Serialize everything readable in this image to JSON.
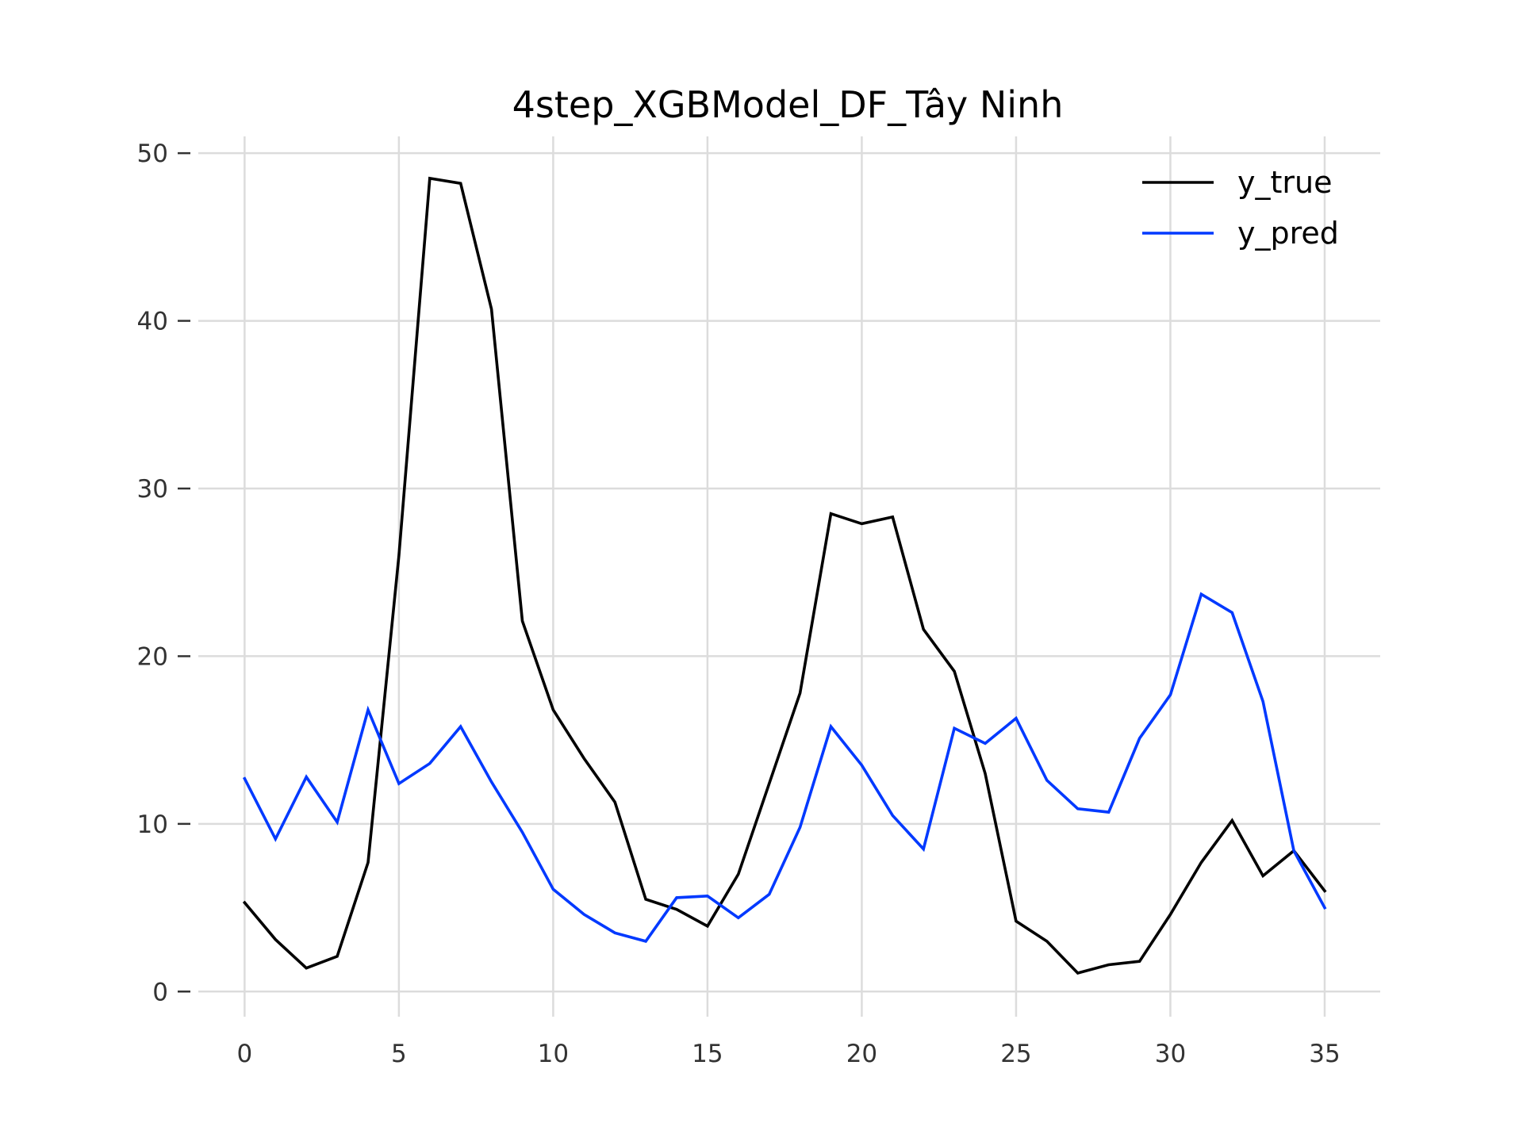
{
  "chart_data": {
    "type": "line",
    "title": "4step_XGBModel_DF_Tây Ninh",
    "xlabel": "",
    "ylabel": "",
    "xlim": [
      -1.5,
      36.8
    ],
    "ylim": [
      -1.5,
      51
    ],
    "x_ticks": [
      0,
      5,
      10,
      15,
      20,
      25,
      30,
      35
    ],
    "y_ticks": [
      0,
      10,
      20,
      30,
      40,
      50
    ],
    "grid": true,
    "legend_position": "top-right",
    "x": [
      0,
      1,
      2,
      3,
      4,
      5,
      6,
      7,
      8,
      9,
      10,
      11,
      12,
      13,
      14,
      15,
      16,
      17,
      18,
      19,
      20,
      21,
      22,
      23,
      24,
      25,
      26,
      27,
      28,
      29,
      30,
      31,
      32,
      33,
      34,
      35
    ],
    "series": [
      {
        "name": "y_true",
        "color": "#000000",
        "values": [
          5.3,
          3.1,
          1.4,
          2.1,
          7.7,
          26.0,
          48.5,
          48.2,
          40.7,
          22.1,
          16.8,
          13.9,
          11.3,
          5.5,
          4.9,
          3.9,
          7.0,
          12.4,
          17.8,
          28.5,
          27.9,
          28.3,
          21.6,
          19.1,
          13.0,
          4.2,
          3.0,
          1.1,
          1.6,
          1.8,
          4.6,
          7.7,
          10.2,
          6.9,
          8.4,
          6.0
        ]
      },
      {
        "name": "y_pred",
        "color": "#0039ff",
        "values": [
          12.7,
          9.1,
          12.8,
          10.1,
          16.8,
          12.4,
          13.6,
          15.8,
          12.5,
          9.5,
          6.1,
          4.6,
          3.5,
          3.0,
          5.6,
          5.7,
          4.4,
          5.8,
          9.8,
          15.8,
          13.5,
          10.5,
          8.5,
          15.7,
          14.8,
          16.3,
          12.6,
          10.9,
          10.7,
          15.1,
          17.7,
          23.7,
          22.6,
          17.3,
          8.4,
          5.0
        ]
      }
    ]
  }
}
